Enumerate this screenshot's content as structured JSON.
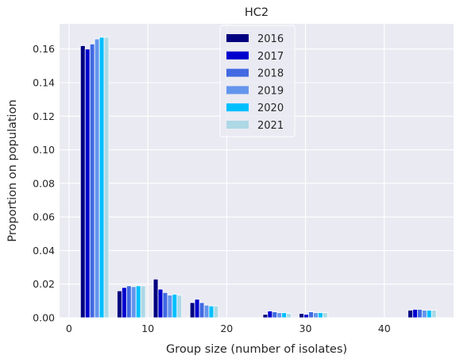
{
  "chart_data": {
    "type": "bar",
    "title": "HC2",
    "xlabel": "Group size (number of isolates)",
    "ylabel": "Proportion on population",
    "xlim": [
      -1.2,
      48.8
    ],
    "ylim": [
      0,
      0.175
    ],
    "xticks": [
      0,
      10,
      20,
      30,
      40
    ],
    "yticks": [
      0.0,
      0.02,
      0.04,
      0.06,
      0.08,
      0.1,
      0.12,
      0.14,
      0.16
    ],
    "ytick_labels": [
      "0.00",
      "0.02",
      "0.04",
      "0.06",
      "0.08",
      "0.10",
      "0.12",
      "0.14",
      "0.16"
    ],
    "grid": true,
    "legend_position": "top-center",
    "group_centers": [
      3.25,
      7.9,
      12.5,
      17.15,
      26.4,
      31.0,
      44.8
    ],
    "bar_width": 0.6,
    "series": [
      {
        "name": "2016",
        "color": "#000080",
        "values": [
          0.162,
          0.016,
          0.023,
          0.009,
          0.002,
          0.0025,
          0.0045
        ]
      },
      {
        "name": "2017",
        "color": "#0000cd",
        "values": [
          0.16,
          0.018,
          0.017,
          0.011,
          0.004,
          0.002,
          0.005
        ]
      },
      {
        "name": "2018",
        "color": "#4169e1",
        "values": [
          0.163,
          0.019,
          0.015,
          0.009,
          0.0035,
          0.0035,
          0.005
        ]
      },
      {
        "name": "2019",
        "color": "#6495ed",
        "values": [
          0.166,
          0.0185,
          0.0135,
          0.0075,
          0.003,
          0.003,
          0.0045
        ]
      },
      {
        "name": "2020",
        "color": "#00bfff",
        "values": [
          0.167,
          0.019,
          0.014,
          0.007,
          0.003,
          0.003,
          0.0045
        ]
      },
      {
        "name": "2021",
        "color": "#add8e6",
        "values": [
          0.167,
          0.019,
          0.0135,
          0.007,
          0.0025,
          0.003,
          0.0045
        ]
      }
    ]
  }
}
